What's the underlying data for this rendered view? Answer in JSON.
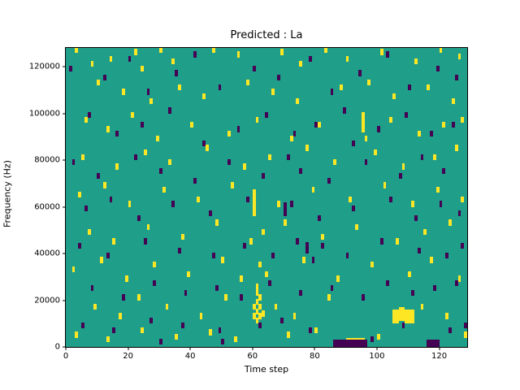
{
  "title": "Predicted : La",
  "xlabel": "Time step",
  "ylabel": "Frequency (Hz)",
  "chart_data": {
    "type": "heatmap",
    "title": "Predicted : La",
    "xlabel": "Time step",
    "ylabel": "Frequency (Hz)",
    "xlim": [
      0,
      129
    ],
    "ylim": [
      0,
      128000
    ],
    "x_ticks": [
      0,
      20,
      40,
      60,
      80,
      100,
      120
    ],
    "y_ticks": [
      0,
      20000,
      40000,
      60000,
      80000,
      100000,
      120000
    ],
    "grid": false,
    "legend": "none",
    "colors": {
      "background": "#1f9e89",
      "yellow": "#fde725",
      "purple": "#440154"
    },
    "cell_default": {
      "width_steps": 1,
      "height_hz": 2500
    },
    "yellow_cells": [
      [
        3,
        126000
      ],
      [
        8,
        120000
      ],
      [
        14,
        122000
      ],
      [
        22,
        125000
      ],
      [
        24,
        118000
      ],
      [
        30,
        126000
      ],
      [
        34,
        121000
      ],
      [
        47,
        126000
      ],
      [
        55,
        124000
      ],
      [
        69,
        125000
      ],
      [
        75,
        120000
      ],
      [
        83,
        126000
      ],
      [
        90,
        122000
      ],
      [
        101,
        125000
      ],
      [
        112,
        121000
      ],
      [
        120,
        126000
      ],
      [
        126,
        123000
      ],
      [
        10,
        112000
      ],
      [
        18,
        108000
      ],
      [
        27,
        104000
      ],
      [
        36,
        110000
      ],
      [
        44,
        106000
      ],
      [
        58,
        112000
      ],
      [
        66,
        108000
      ],
      [
        74,
        104000
      ],
      [
        88,
        110000
      ],
      [
        97,
        112000
      ],
      [
        105,
        106000
      ],
      [
        116,
        110000
      ],
      [
        124,
        104000
      ],
      [
        6,
        96000
      ],
      [
        13,
        92000
      ],
      [
        21,
        98000
      ],
      [
        29,
        88000
      ],
      [
        40,
        94000
      ],
      [
        52,
        90000
      ],
      [
        61,
        96000
      ],
      [
        72,
        88000
      ],
      [
        81,
        94000
      ],
      [
        95,
        98000
      ],
      [
        95,
        92000,
        6000
      ],
      [
        96,
        88000
      ],
      [
        104,
        96000
      ],
      [
        113,
        90000
      ],
      [
        121,
        94000
      ],
      [
        127,
        96000
      ],
      [
        5,
        80000
      ],
      [
        16,
        76000
      ],
      [
        25,
        82000
      ],
      [
        33,
        78000
      ],
      [
        45,
        84000
      ],
      [
        57,
        76000
      ],
      [
        65,
        80000
      ],
      [
        77,
        84000
      ],
      [
        86,
        78000
      ],
      [
        99,
        82000
      ],
      [
        108,
        76000
      ],
      [
        118,
        80000
      ],
      [
        125,
        84000
      ],
      [
        4,
        64000
      ],
      [
        12,
        68000
      ],
      [
        20,
        60000
      ],
      [
        31,
        66000
      ],
      [
        42,
        62000
      ],
      [
        53,
        68000
      ],
      [
        60,
        56000,
        9000
      ],
      [
        60,
        65000
      ],
      [
        68,
        60000
      ],
      [
        79,
        66000
      ],
      [
        91,
        62000
      ],
      [
        102,
        68000
      ],
      [
        111,
        60000
      ],
      [
        119,
        66000
      ],
      [
        127,
        62000
      ],
      [
        7,
        48000
      ],
      [
        15,
        44000
      ],
      [
        26,
        50000
      ],
      [
        37,
        46000
      ],
      [
        48,
        52000
      ],
      [
        59,
        44000
      ],
      [
        63,
        48000
      ],
      [
        70,
        52000
      ],
      [
        82,
        46000
      ],
      [
        93,
        50000
      ],
      [
        106,
        44000
      ],
      [
        115,
        48000
      ],
      [
        123,
        52000
      ],
      [
        2,
        32000
      ],
      [
        11,
        36000
      ],
      [
        19,
        28000
      ],
      [
        28,
        34000
      ],
      [
        39,
        30000
      ],
      [
        50,
        36000
      ],
      [
        56,
        28000
      ],
      [
        62,
        34000
      ],
      [
        64,
        30000
      ],
      [
        76,
        36000
      ],
      [
        87,
        28000
      ],
      [
        98,
        34000
      ],
      [
        110,
        30000
      ],
      [
        117,
        36000
      ],
      [
        126,
        28000
      ],
      [
        60,
        12000
      ],
      [
        60,
        16000
      ],
      [
        61,
        10000
      ],
      [
        61,
        14000
      ],
      [
        61,
        18000
      ],
      [
        62,
        12000
      ],
      [
        62,
        16000
      ],
      [
        62,
        20000
      ],
      [
        61,
        22000,
        5000
      ],
      [
        63,
        13000
      ],
      [
        9,
        16000
      ],
      [
        17,
        12000
      ],
      [
        23,
        20000
      ],
      [
        32,
        16000
      ],
      [
        43,
        12000
      ],
      [
        51,
        20000
      ],
      [
        67,
        16000
      ],
      [
        73,
        12000
      ],
      [
        84,
        20000
      ],
      [
        105,
        10000,
        6000,
        2
      ],
      [
        107,
        11000,
        6000,
        2
      ],
      [
        109,
        10000,
        6000,
        3
      ],
      [
        114,
        16000
      ],
      [
        122,
        12000
      ],
      [
        3,
        4000
      ],
      [
        13,
        2000
      ],
      [
        24,
        6000
      ],
      [
        35,
        3000
      ],
      [
        46,
        5000
      ],
      [
        54,
        2000
      ],
      [
        71,
        4000
      ],
      [
        80,
        6000
      ],
      [
        90,
        500,
        3500,
        6
      ],
      [
        100,
        3000
      ],
      [
        128,
        4000
      ]
    ],
    "purple_cells": [
      [
        1,
        118000
      ],
      [
        12,
        114000
      ],
      [
        20,
        122000
      ],
      [
        26,
        108000
      ],
      [
        35,
        116000
      ],
      [
        41,
        124000
      ],
      [
        49,
        110000
      ],
      [
        60,
        118000
      ],
      [
        68,
        114000
      ],
      [
        78,
        122000
      ],
      [
        85,
        108000
      ],
      [
        94,
        116000
      ],
      [
        103,
        124000
      ],
      [
        110,
        110000
      ],
      [
        119,
        118000
      ],
      [
        125,
        114000
      ],
      [
        7,
        98000
      ],
      [
        16,
        90000
      ],
      [
        24,
        94000
      ],
      [
        33,
        100000
      ],
      [
        44,
        86000
      ],
      [
        55,
        92000
      ],
      [
        64,
        98000
      ],
      [
        73,
        90000
      ],
      [
        80,
        94000
      ],
      [
        89,
        100000
      ],
      [
        92,
        86000
      ],
      [
        100,
        92000
      ],
      [
        109,
        98000
      ],
      [
        117,
        90000
      ],
      [
        124,
        94000
      ],
      [
        2,
        78000
      ],
      [
        10,
        72000
      ],
      [
        22,
        80000
      ],
      [
        30,
        74000
      ],
      [
        41,
        70000
      ],
      [
        52,
        78000
      ],
      [
        63,
        72000
      ],
      [
        71,
        80000
      ],
      [
        75,
        74000
      ],
      [
        84,
        70000
      ],
      [
        96,
        78000
      ],
      [
        107,
        72000
      ],
      [
        114,
        80000
      ],
      [
        121,
        74000
      ],
      [
        6,
        58000
      ],
      [
        14,
        62000
      ],
      [
        23,
        54000
      ],
      [
        34,
        60000
      ],
      [
        46,
        56000
      ],
      [
        58,
        62000
      ],
      [
        70,
        56000,
        6000
      ],
      [
        72,
        60000
      ],
      [
        81,
        54000
      ],
      [
        92,
        58000
      ],
      [
        104,
        62000
      ],
      [
        112,
        54000
      ],
      [
        120,
        60000
      ],
      [
        126,
        56000
      ],
      [
        4,
        42000
      ],
      [
        13,
        38000
      ],
      [
        25,
        44000
      ],
      [
        36,
        40000
      ],
      [
        47,
        38000
      ],
      [
        57,
        42000
      ],
      [
        66,
        38000
      ],
      [
        74,
        44000
      ],
      [
        77,
        40000,
        5000
      ],
      [
        79,
        36000
      ],
      [
        82,
        42000
      ],
      [
        90,
        38000
      ],
      [
        101,
        44000
      ],
      [
        113,
        40000
      ],
      [
        122,
        38000
      ],
      [
        127,
        42000
      ],
      [
        8,
        24000
      ],
      [
        18,
        20000
      ],
      [
        28,
        26000
      ],
      [
        38,
        22000
      ],
      [
        48,
        24000
      ],
      [
        56,
        20000
      ],
      [
        65,
        26000
      ],
      [
        75,
        22000
      ],
      [
        85,
        24000
      ],
      [
        95,
        20000
      ],
      [
        103,
        26000
      ],
      [
        111,
        22000
      ],
      [
        118,
        24000
      ],
      [
        125,
        26000
      ],
      [
        5,
        8000
      ],
      [
        15,
        6000
      ],
      [
        27,
        10000
      ],
      [
        37,
        8000
      ],
      [
        49,
        6000
      ],
      [
        62,
        8000
      ],
      [
        69,
        10000
      ],
      [
        78,
        6000
      ],
      [
        86,
        0,
        3000,
        11
      ],
      [
        98,
        2000
      ],
      [
        108,
        8000
      ],
      [
        116,
        0,
        3000,
        4
      ],
      [
        123,
        6000
      ],
      [
        128,
        8000
      ],
      [
        30,
        1000
      ],
      [
        50,
        1000
      ]
    ]
  }
}
